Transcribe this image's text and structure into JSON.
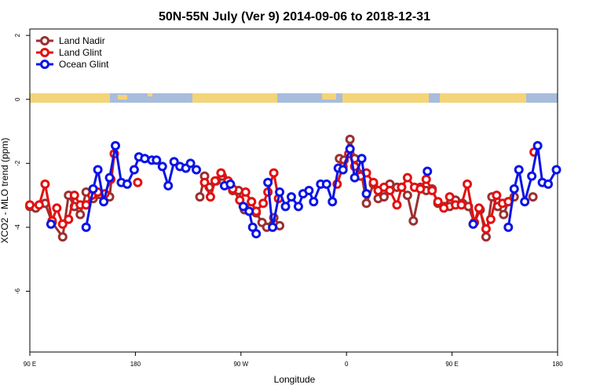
{
  "chart_data": {
    "type": "line",
    "title": "50N-55N July (Ver 9)   2014-09-06 to 2018-12-31",
    "x_label": "Longitude",
    "y_label": "XCO2 - MLO trend (ppm)",
    "xlim": [
      90,
      540
    ],
    "xticks": [
      {
        "value": 90,
        "label": "90 E"
      },
      180,
      {
        "value": 270,
        "label": "90 W"
      },
      {
        "value": 360,
        "label": "0"
      },
      {
        "value": 450,
        "label": "90 E"
      },
      {
        "value": 540,
        "label": "180"
      }
    ],
    "ylim": [
      -7.9,
      2.2
    ],
    "yticks": [
      -6,
      -4,
      -2,
      0,
      2
    ],
    "legend": "top-left",
    "series": [
      {
        "name": "Land Nadir",
        "color": "#9b3030",
        "x": [
          90,
          95,
          103,
          109,
          118,
          123,
          128,
          133,
          138,
          144,
          158,
          162,
          null,
          235,
          239,
          243,
          249,
          254,
          259,
          263,
          268,
          273,
          279,
          283,
          288,
          292,
          298,
          303,
          null,
          354,
          358,
          363,
          367,
          373,
          377,
          383,
          387,
          392,
          397,
          403,
          407,
          412,
          417,
          423,
          428,
          433,
          438,
          443,
          448,
          453,
          459,
          464,
          469,
          474,
          479,
          484,
          489,
          494,
          498,
          503,
          null,
          519
        ],
        "values": [
          -3.35,
          -3.4,
          -3.25,
          -3.85,
          -4.3,
          -3.0,
          -3.35,
          -3.6,
          -2.9,
          -3.1,
          -3.05,
          -1.7,
          null,
          -3.05,
          -2.4,
          -2.75,
          -2.55,
          -2.4,
          -2.65,
          -2.85,
          -2.85,
          -3.45,
          -3.2,
          -3.55,
          -3.85,
          -4.0,
          -3.7,
          -3.95,
          null,
          -1.85,
          -1.9,
          -1.25,
          -1.85,
          -2.35,
          -3.25,
          -2.65,
          -3.1,
          -3.05,
          -2.65,
          -2.75,
          -2.75,
          -3.0,
          -3.8,
          -2.75,
          -2.85,
          -2.8,
          -3.25,
          -3.35,
          -3.35,
          -3.15,
          -3.25,
          -3.35,
          -3.85,
          -3.45,
          -4.3,
          -3.05,
          -3.35,
          -3.6,
          -3.2,
          -3.05,
          null,
          -3.05
        ]
      },
      {
        "name": "Land Glint",
        "color": "#e31010",
        "x": [
          90,
          98,
          103,
          109,
          113,
          118,
          123,
          128,
          133,
          138,
          143,
          148,
          154,
          159,
          162,
          null,
          182,
          null,
          239,
          244,
          248,
          253,
          259,
          263,
          269,
          274,
          279,
          283,
          289,
          293,
          298,
          302,
          null,
          352,
          357,
          362,
          367,
          372,
          377,
          383,
          387,
          392,
          397,
          403,
          407,
          412,
          418,
          423,
          428,
          433,
          438,
          443,
          448,
          453,
          458,
          463,
          469,
          473,
          479,
          483,
          488,
          493,
          498,
          null,
          520
        ],
        "values": [
          -3.3,
          -3.3,
          -2.65,
          -3.8,
          -3.4,
          -3.9,
          -3.75,
          -3.0,
          -3.3,
          -3.3,
          -3.0,
          -2.9,
          -2.95,
          -2.5,
          -1.7,
          null,
          -2.6,
          null,
          -2.6,
          -3.05,
          -2.55,
          -2.3,
          -2.55,
          -2.8,
          -3.15,
          -2.9,
          -3.2,
          -3.5,
          -3.25,
          -2.9,
          -2.3,
          -3.1,
          null,
          -2.65,
          -2.1,
          -1.7,
          -2.1,
          -2.4,
          -2.3,
          -2.6,
          -2.85,
          -2.75,
          -2.85,
          -3.3,
          -2.75,
          -2.45,
          -2.75,
          -2.8,
          -2.5,
          -2.85,
          -3.2,
          -3.4,
          -3.05,
          -3.3,
          -3.3,
          -2.65,
          -3.85,
          -3.4,
          -4.05,
          -3.75,
          -3.0,
          -3.25,
          -3.2,
          null,
          -1.65
        ]
      },
      {
        "name": "Ocean Glint",
        "color": "#0a14e6",
        "x": [
          108,
          null,
          138,
          144,
          148,
          153,
          158,
          163,
          168,
          173,
          179,
          183,
          188,
          194,
          198,
          203,
          208,
          213,
          218,
          223,
          227,
          232,
          null,
          256,
          261,
          null,
          272,
          277,
          280,
          283,
          null,
          293,
          297,
          303,
          308,
          313,
          319,
          323,
          328,
          332,
          338,
          343,
          348,
          353,
          357,
          363,
          367,
          373,
          377,
          null,
          429,
          null,
          468,
          null,
          498,
          503,
          507,
          512,
          518,
          523,
          527,
          532,
          539
        ],
        "values": [
          -3.9,
          null,
          -4.0,
          -2.8,
          -2.2,
          -3.2,
          -2.45,
          -1.45,
          -2.6,
          -2.65,
          -2.2,
          -1.8,
          -1.85,
          -1.9,
          -1.9,
          -2.1,
          -2.7,
          -1.95,
          -2.1,
          -2.15,
          -2.0,
          -2.2,
          null,
          -2.7,
          -2.65,
          null,
          -3.35,
          -3.5,
          -4.0,
          -4.2,
          null,
          -2.6,
          -4.0,
          -2.9,
          -3.35,
          -3.05,
          -3.35,
          -2.95,
          -2.85,
          -3.2,
          -2.65,
          -2.65,
          -3.2,
          -2.15,
          -2.2,
          -1.55,
          -2.45,
          -1.85,
          -2.95,
          null,
          -2.25,
          null,
          -3.9,
          null,
          -4.0,
          -2.8,
          -2.2,
          -3.2,
          -2.4,
          -1.45,
          -2.6,
          -2.65,
          -2.2
        ]
      }
    ]
  }
}
